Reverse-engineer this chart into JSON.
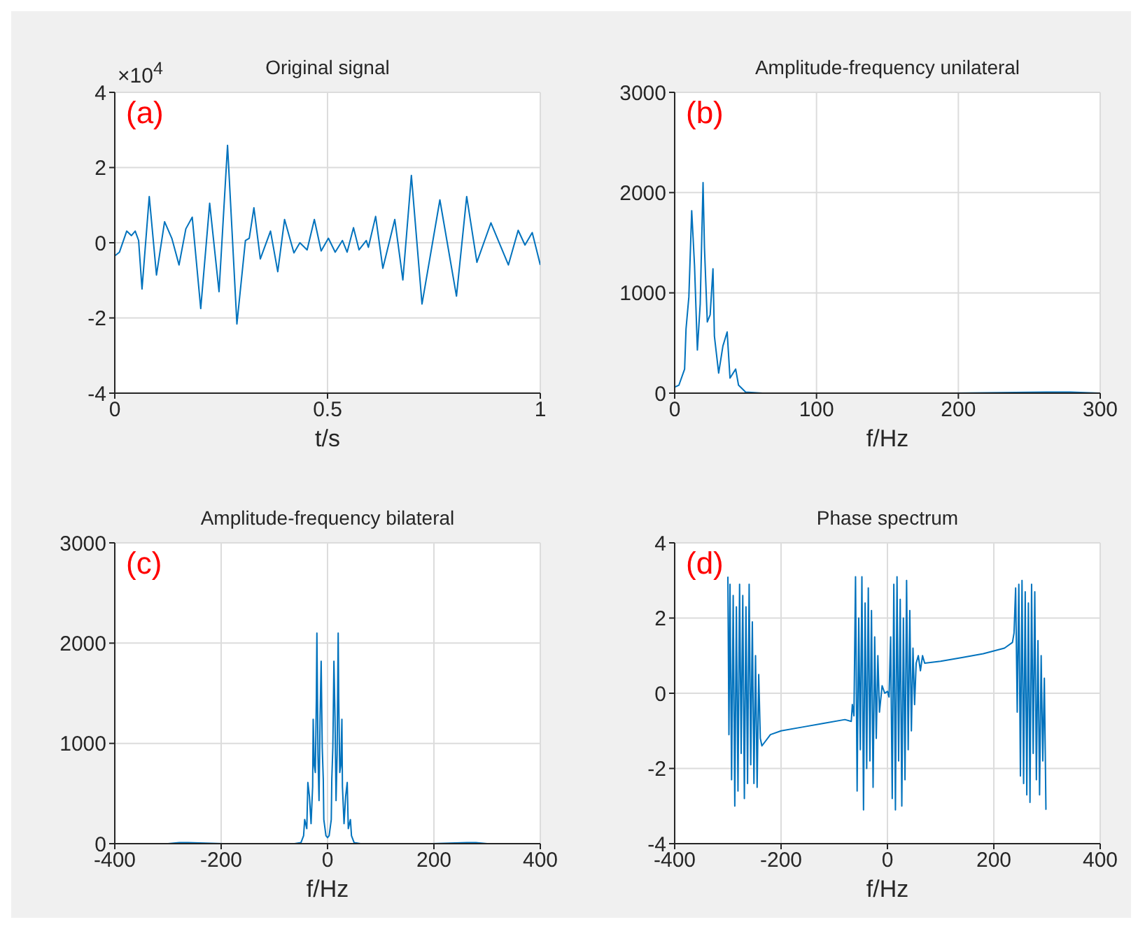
{
  "chart_data": [
    {
      "type": "line",
      "title": "Original signal",
      "xlabel": "t/s",
      "annotations": [
        "(a)",
        "×10$^{4}$"
      ],
      "color": "#0072bd",
      "grid": true,
      "xlim": [
        0,
        1
      ],
      "xticks": [
        0,
        0.5,
        1
      ],
      "ylim": [
        -4,
        4
      ],
      "yticks": [
        -4,
        -2,
        0,
        2,
        4
      ],
      "x": [
        0,
        0.011,
        0.028,
        0.039,
        0.048,
        0.056,
        0.064,
        0.081,
        0.098,
        0.117,
        0.134,
        0.151,
        0.167,
        0.182,
        0.202,
        0.223,
        0.245,
        0.265,
        0.287,
        0.307,
        0.316,
        0.327,
        0.342,
        0.366,
        0.383,
        0.399,
        0.421,
        0.435,
        0.452,
        0.469,
        0.485,
        0.502,
        0.518,
        0.535,
        0.546,
        0.561,
        0.574,
        0.591,
        0.596,
        0.613,
        0.63,
        0.658,
        0.677,
        0.697,
        0.722,
        0.764,
        0.803,
        0.827,
        0.851,
        0.884,
        0.925,
        0.948,
        0.964,
        0.981,
        1
      ],
      "values": [
        -0.35,
        -0.25,
        0.31,
        0.19,
        0.31,
        0.06,
        -1.23,
        1.23,
        -0.86,
        0.56,
        0.12,
        -0.59,
        0.37,
        0.68,
        -1.75,
        1.05,
        -1.3,
        2.59,
        -2.16,
        0.06,
        0.12,
        0.93,
        -0.43,
        0.31,
        -0.77,
        0.62,
        -0.27,
        0,
        -0.19,
        0.62,
        -0.22,
        0.12,
        -0.25,
        0.06,
        -0.25,
        0.4,
        -0.19,
        0.06,
        -0.12,
        0.7,
        -0.68,
        0.62,
        -0.99,
        1.79,
        -1.63,
        1.14,
        -1.42,
        1.23,
        -0.52,
        0.53,
        -0.59,
        0.33,
        -0.06,
        0.27,
        -0.59
      ]
    },
    {
      "type": "line",
      "title": "Amplitude-frequency unilateral",
      "xlabel": "f/Hz",
      "annotations": [
        "(b)"
      ],
      "color": "#0072bd",
      "grid": true,
      "xlim": [
        0,
        300
      ],
      "xticks": [
        0,
        100,
        200,
        300
      ],
      "ylim": [
        0,
        3000
      ],
      "yticks": [
        0,
        1000,
        2000,
        3000
      ],
      "x": [
        0,
        3,
        7,
        8,
        10,
        12,
        14,
        16,
        18,
        20,
        21,
        23,
        25,
        27,
        28,
        31,
        34,
        37,
        39,
        43,
        45,
        50,
        62,
        196,
        262,
        279,
        300
      ],
      "values": [
        60,
        80,
        240,
        640,
        960,
        1820,
        1270,
        430,
        890,
        2100,
        1450,
        710,
        780,
        1240,
        570,
        200,
        470,
        610,
        150,
        240,
        80,
        10,
        0,
        0,
        10,
        10,
        0
      ]
    },
    {
      "type": "line",
      "title": "Amplitude-frequency bilateral",
      "xlabel": "f/Hz",
      "annotations": [
        "(c)"
      ],
      "color": "#0072bd",
      "grid": true,
      "xlim": [
        -400,
        400
      ],
      "xticks": [
        -400,
        -200,
        0,
        200,
        400
      ],
      "ylim": [
        0,
        3000
      ],
      "yticks": [
        0,
        1000,
        2000,
        3000
      ],
      "x": [
        -300,
        -279,
        -262,
        -196,
        -62,
        -50,
        -45,
        -43,
        -39,
        -37,
        -34,
        -31,
        -28,
        -27,
        -25,
        -23,
        -21,
        -20,
        -18,
        -16,
        -14,
        -12,
        -10,
        -8,
        -7,
        -3,
        0,
        3,
        7,
        8,
        10,
        12,
        14,
        16,
        18,
        20,
        21,
        23,
        25,
        27,
        28,
        31,
        34,
        37,
        39,
        43,
        45,
        50,
        62,
        196,
        262,
        279,
        300
      ],
      "values": [
        0,
        10,
        10,
        0,
        0,
        10,
        80,
        240,
        150,
        610,
        470,
        200,
        570,
        1240,
        780,
        710,
        1450,
        2100,
        890,
        430,
        1270,
        1820,
        960,
        640,
        240,
        80,
        60,
        80,
        240,
        640,
        960,
        1820,
        1270,
        430,
        890,
        2100,
        1450,
        710,
        780,
        1240,
        570,
        200,
        470,
        610,
        150,
        240,
        80,
        10,
        0,
        0,
        10,
        10,
        0
      ]
    },
    {
      "type": "line",
      "title": "Phase spectrum",
      "xlabel": "f/Hz",
      "annotations": [
        "(d)"
      ],
      "color": "#0072bd",
      "grid": true,
      "xlim": [
        -400,
        400
      ],
      "xticks": [
        -400,
        -200,
        0,
        200,
        400
      ],
      "ylim": [
        -4,
        4
      ],
      "yticks": [
        -4,
        -2,
        0,
        2,
        4
      ],
      "x": [
        -300,
        -298,
        -296,
        -293,
        -290,
        -287,
        -284,
        -281,
        -278,
        -275,
        -272,
        -269,
        -266,
        -263,
        -260,
        -257,
        -254,
        -251,
        -248,
        -245,
        -242,
        -239,
        -236,
        -220,
        -200,
        -160,
        -120,
        -80,
        -68,
        -66,
        -63,
        -60,
        -57,
        -54,
        -51,
        -48,
        -45,
        -42,
        -39,
        -36,
        -33,
        -30,
        -27,
        -24,
        -21,
        -18,
        -15,
        -10,
        -5,
        0,
        3,
        6,
        9,
        12,
        15,
        18,
        21,
        24,
        27,
        30,
        33,
        36,
        39,
        42,
        45,
        48,
        51,
        54,
        58,
        62,
        66,
        70,
        100,
        140,
        180,
        220,
        235,
        238,
        241,
        244,
        247,
        250,
        253,
        256,
        259,
        262,
        265,
        268,
        271,
        274,
        277,
        280,
        283,
        286,
        289,
        292,
        295,
        298
      ],
      "values": [
        3.1,
        -1.1,
        2.9,
        -2.3,
        2.6,
        -3,
        2.3,
        -2.6,
        2.9,
        -1.6,
        2.6,
        -2.8,
        2.3,
        -2.4,
        2.9,
        -1.9,
        1.9,
        -2.4,
        1,
        -2.5,
        0.5,
        -1.2,
        -1.4,
        -1.1,
        -1,
        -0.9,
        -0.8,
        -0.7,
        -0.75,
        -0.3,
        -0.6,
        3.1,
        -2.6,
        2,
        -1.5,
        3.1,
        -3.1,
        2.4,
        -2,
        2.8,
        -1.8,
        2.2,
        -2.5,
        1.5,
        -1.2,
        1,
        -0.5,
        0.2,
        0,
        0.05,
        -0.1,
        1.5,
        -2.8,
        2.9,
        -3.1,
        3.1,
        -1.8,
        2.5,
        -3,
        2,
        -2.3,
        3,
        -1.5,
        2.2,
        -1,
        1.2,
        -0.3,
        0.8,
        1,
        0.6,
        1,
        0.8,
        0.85,
        0.95,
        1.05,
        1.2,
        1.35,
        1.6,
        2.8,
        -0.5,
        2.9,
        -2.2,
        3,
        -2.4,
        2.7,
        -2.7,
        2.4,
        -2.9,
        2.9,
        -1.6,
        2.7,
        -2.3,
        1.4,
        -2.7,
        1,
        -1.8,
        0.4,
        -3.1
      ]
    }
  ]
}
